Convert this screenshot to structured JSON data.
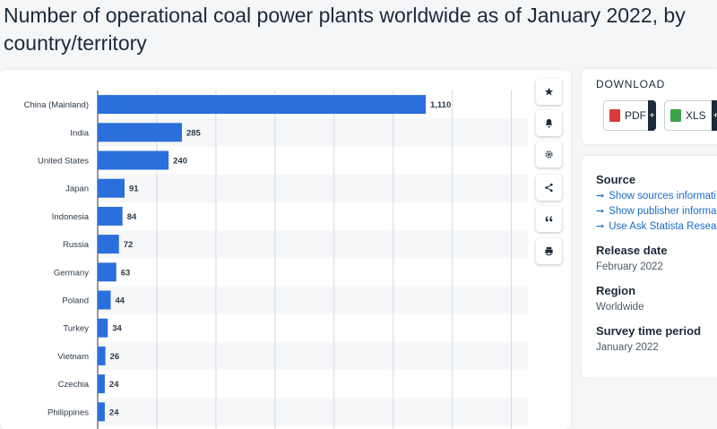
{
  "title": "Number of operational coal power plants worldwide as of January 2022, by country/territory",
  "chart_data": {
    "type": "bar",
    "orientation": "horizontal",
    "categories": [
      "China (Mainland)",
      "India",
      "United States",
      "Japan",
      "Indonesia",
      "Russia",
      "Germany",
      "Poland",
      "Turkey",
      "Vietnam",
      "Czechia",
      "Philippines"
    ],
    "values": [
      1110,
      285,
      240,
      91,
      84,
      72,
      63,
      44,
      34,
      26,
      24,
      24
    ],
    "value_labels": [
      "1,110",
      "285",
      "240",
      "91",
      "84",
      "72",
      "63",
      "44",
      "34",
      "26",
      "24",
      "24"
    ],
    "xlim": [
      0,
      1400
    ],
    "grid": true,
    "bar_color": "#2a6fdb"
  },
  "toolbar": {
    "icons": [
      "star-icon",
      "bell-icon",
      "gear-icon",
      "share-icon",
      "quote-icon",
      "print-icon"
    ]
  },
  "download": {
    "title": "DOWNLOAD",
    "pdf_label": "PDF",
    "xls_label": "XLS",
    "plus": "+"
  },
  "info": {
    "source_title": "Source",
    "source_links": [
      "Show sources informati",
      "Show publisher informa",
      "Use Ask Statista Resear"
    ],
    "release_date_title": "Release date",
    "release_date": "February 2022",
    "region_title": "Region",
    "region": "Worldwide",
    "survey_title": "Survey time period",
    "survey": "January 2022"
  },
  "colors": {
    "accent": "#2a6fdb",
    "link": "#1c6bc4",
    "text": "#1c2a3a"
  }
}
